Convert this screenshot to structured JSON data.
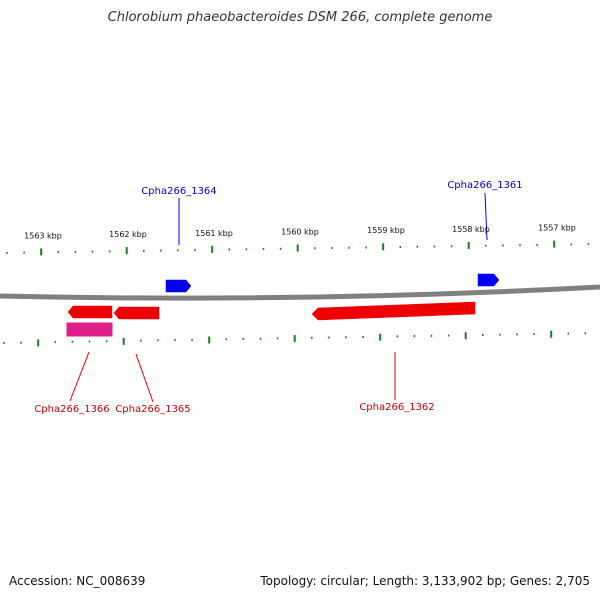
{
  "title": "Chlorobium phaeobacteroides DSM 266, complete genome",
  "footer": {
    "accession": "Accession: NC_008639",
    "summary": "Topology: circular; Length: 3,133,902 bp; Genes: 2,705"
  },
  "colors": {
    "backbone": "#808080",
    "ticks": "#1e7a1e",
    "forward_gene": "#0000ee",
    "reverse_gene": "#ee0000",
    "rna_gene": "#e0208a"
  },
  "kbp_labels": [
    "1563 kbp",
    "1562 kbp",
    "1561 kbp",
    "1560 kbp",
    "1559 kbp",
    "1558 kbp",
    "1557 kbp"
  ],
  "genes": [
    {
      "name": "Cpha266_1364",
      "strand": "forward"
    },
    {
      "name": "Cpha266_1361",
      "strand": "forward"
    },
    {
      "name": "Cpha266_1366",
      "strand": "reverse"
    },
    {
      "name": "Cpha266_1365",
      "strand": "reverse"
    },
    {
      "name": "Cpha266_1362",
      "strand": "reverse"
    }
  ]
}
